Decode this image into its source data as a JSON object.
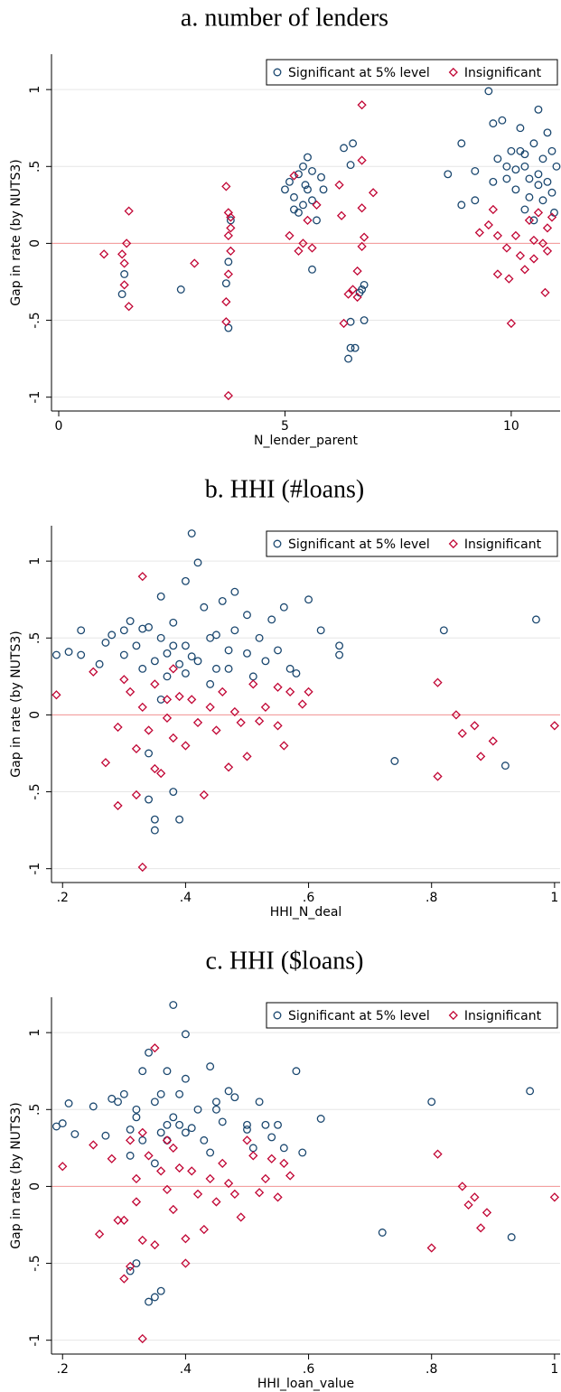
{
  "chart_data": [
    {
      "type": "scatter",
      "title": "a. number of lenders",
      "xlabel": "N_lender_parent",
      "ylabel": "Gap in rate (by NUTS3)",
      "xlim": [
        -0.16,
        11.08
      ],
      "ylim": [
        -1.09,
        1.23
      ],
      "xticks": [
        0,
        5,
        10
      ],
      "yticks": [
        -1,
        {
          "value": -0.5,
          "label": "-.5"
        },
        0,
        {
          "value": 0.5,
          "label": ".5"
        },
        1
      ],
      "grid": true,
      "reference_line": 0,
      "reference_color": "#f4a0a0",
      "legend": "top-right",
      "series": [
        {
          "name": "Significant at 5% level",
          "color": "#1a476f",
          "marker": "circle",
          "x": [
            1.4,
            1.45,
            2.7,
            3.75,
            3.7,
            3.8,
            3.75,
            5,
            5.1,
            5.2,
            5.3,
            5.4,
            5.5,
            5.6,
            5.5,
            5.4,
            5.3,
            5.6,
            5.7,
            5.8,
            5.85,
            5.2,
            5.6,
            5.45,
            6.3,
            6.5,
            6.45,
            6.4,
            6.45,
            6.55,
            6.45,
            6.75,
            6.75,
            6.7,
            6.65,
            8.6,
            8.9,
            8.9,
            9.2,
            9.2,
            9.5,
            9.6,
            9.7,
            9.8,
            9.9,
            10,
            10.1,
            10.2,
            10.3,
            10.4,
            10.5,
            10.6,
            10.7,
            10.8,
            10.9,
            11,
            10.3,
            10.5,
            10.7,
            10.9,
            10.6,
            10.2,
            10.8,
            9.9,
            10.4,
            10.1,
            10.6,
            10.3,
            10.95,
            9.6
          ],
          "y": [
            -0.33,
            -0.2,
            -0.3,
            -0.55,
            -0.26,
            0.15,
            -0.12,
            0.35,
            0.4,
            0.3,
            0.45,
            0.5,
            0.56,
            0.47,
            0.35,
            0.25,
            0.2,
            -0.17,
            0.15,
            0.43,
            0.35,
            0.22,
            0.28,
            0.38,
            0.62,
            0.65,
            0.51,
            -0.75,
            -0.68,
            -0.68,
            -0.51,
            -0.5,
            -0.27,
            -0.3,
            -0.32,
            0.45,
            0.25,
            0.65,
            0.47,
            0.28,
            0.99,
            0.78,
            0.55,
            0.8,
            0.42,
            0.6,
            0.35,
            0.75,
            0.5,
            0.3,
            0.65,
            0.45,
            0.55,
            0.4,
            0.33,
            0.5,
            0.22,
            0.15,
            0.28,
            0.6,
            0.87,
            0.6,
            0.72,
            0.5,
            0.42,
            0.48,
            0.38,
            0.58,
            0.2,
            0.4
          ]
        },
        {
          "name": "Insignificant",
          "color": "#c10534",
          "marker": "diamond",
          "x": [
            1,
            1.4,
            1.45,
            1.45,
            1.5,
            1.55,
            1.55,
            3,
            3.7,
            3.7,
            3.75,
            3.75,
            3.8,
            3.8,
            3.75,
            3.7,
            3.8,
            3.75,
            5.2,
            5.1,
            5.3,
            5.5,
            5.7,
            5.6,
            5.4,
            6.2,
            6.25,
            6.3,
            6.4,
            6.5,
            6.6,
            6.7,
            6.7,
            6.7,
            6.75,
            6.7,
            6.6,
            6.95,
            9.3,
            9.5,
            9.7,
            9.9,
            9.95,
            10,
            10.1,
            10.2,
            10.4,
            10.5,
            10.6,
            10.7,
            10.75,
            10.8,
            10.9,
            9.6,
            10.3,
            9.7,
            10.8,
            10.5
          ],
          "y": [
            -0.07,
            -0.07,
            -0.13,
            -0.27,
            0,
            0.21,
            -0.41,
            -0.13,
            0.37,
            -0.51,
            -0.99,
            0.2,
            0.1,
            -0.05,
            -0.2,
            -0.38,
            0.17,
            0.05,
            0.44,
            0.05,
            -0.05,
            0.15,
            0.25,
            -0.03,
            0,
            0.38,
            0.18,
            -0.52,
            -0.33,
            -0.3,
            -0.18,
            0.9,
            0.54,
            0.23,
            0.04,
            -0.02,
            -0.35,
            0.33,
            0.07,
            0.12,
            0.05,
            -0.03,
            -0.23,
            -0.52,
            0.05,
            -0.08,
            0.15,
            -0.1,
            0.2,
            0,
            -0.32,
            -0.05,
            0.17,
            0.22,
            -0.17,
            -0.2,
            0.1,
            0.02
          ]
        }
      ]
    },
    {
      "type": "scatter",
      "title": "b. HHI (#loans)",
      "xlabel": "HHI_N_deal",
      "ylabel": "Gap in rate (by NUTS3)",
      "xlim": [
        0.182,
        1.009
      ],
      "ylim": [
        -1.09,
        1.23
      ],
      "xticks": [
        {
          "value": 0.2,
          "label": ".2"
        },
        {
          "value": 0.4,
          "label": ".4"
        },
        {
          "value": 0.6,
          "label": ".6"
        },
        {
          "value": 0.8,
          "label": ".8"
        },
        1
      ],
      "yticks": [
        -1,
        {
          "value": -0.5,
          "label": "-.5"
        },
        0,
        {
          "value": 0.5,
          "label": ".5"
        },
        1
      ],
      "grid": true,
      "reference_line": 0,
      "reference_color": "#f4a0a0",
      "legend": "top-right",
      "series": [
        {
          "name": "Significant at 5% level",
          "color": "#1a476f",
          "marker": "circle",
          "x": [
            0.19,
            0.21,
            0.23,
            0.23,
            0.26,
            0.27,
            0.28,
            0.3,
            0.31,
            0.3,
            0.32,
            0.33,
            0.33,
            0.34,
            0.34,
            0.34,
            0.35,
            0.35,
            0.36,
            0.36,
            0.37,
            0.37,
            0.38,
            0.38,
            0.39,
            0.4,
            0.4,
            0.41,
            0.42,
            0.42,
            0.43,
            0.44,
            0.45,
            0.46,
            0.47,
            0.48,
            0.48,
            0.5,
            0.5,
            0.51,
            0.52,
            0.53,
            0.54,
            0.55,
            0.56,
            0.57,
            0.58,
            0.6,
            0.62,
            0.65,
            0.65,
            0.74,
            0.82,
            0.92,
            0.97,
            0.39,
            0.41,
            0.45,
            0.44,
            0.36,
            0.38,
            0.4,
            0.47,
            0.35
          ],
          "y": [
            0.39,
            0.41,
            0.55,
            0.39,
            0.33,
            0.47,
            0.52,
            0.55,
            0.61,
            0.39,
            0.45,
            0.56,
            0.3,
            0.57,
            -0.25,
            -0.55,
            -0.68,
            -0.75,
            0.77,
            0.5,
            0.4,
            0.25,
            0.6,
            -0.5,
            -0.68,
            0.87,
            0.45,
            1.18,
            0.99,
            0.35,
            0.7,
            0.5,
            0.3,
            0.74,
            0.42,
            0.55,
            0.8,
            0.65,
            0.4,
            0.25,
            0.5,
            0.35,
            0.62,
            0.42,
            0.7,
            0.3,
            0.27,
            0.75,
            0.55,
            0.45,
            0.39,
            -0.3,
            0.55,
            -0.33,
            0.62,
            0.33,
            0.38,
            0.52,
            0.2,
            0.1,
            0.45,
            0.27,
            0.3,
            0.35
          ]
        },
        {
          "name": "Insignificant",
          "color": "#c10534",
          "marker": "diamond",
          "x": [
            0.19,
            0.25,
            0.27,
            0.29,
            0.29,
            0.3,
            0.31,
            0.32,
            0.32,
            0.33,
            0.33,
            0.33,
            0.34,
            0.35,
            0.35,
            0.36,
            0.37,
            0.37,
            0.38,
            0.38,
            0.4,
            0.41,
            0.42,
            0.43,
            0.44,
            0.45,
            0.46,
            0.47,
            0.48,
            0.49,
            0.5,
            0.51,
            0.53,
            0.55,
            0.56,
            0.57,
            0.59,
            0.6,
            0.81,
            0.81,
            0.84,
            0.85,
            0.87,
            0.88,
            0.9,
            1,
            0.55,
            0.52,
            0.39
          ],
          "y": [
            0.13,
            0.28,
            -0.31,
            -0.08,
            -0.59,
            0.23,
            0.15,
            -0.22,
            -0.52,
            0.9,
            -0.99,
            0.05,
            -0.1,
            -0.35,
            0.2,
            -0.38,
            0.1,
            -0.02,
            0.3,
            -0.15,
            -0.2,
            0.1,
            -0.05,
            -0.52,
            0.05,
            -0.1,
            0.15,
            -0.34,
            0.02,
            -0.05,
            -0.27,
            0.2,
            0.05,
            -0.07,
            -0.2,
            0.15,
            0.07,
            0.15,
            0.21,
            -0.4,
            0,
            -0.12,
            -0.07,
            -0.27,
            -0.17,
            -0.07,
            0.18,
            -0.04,
            0.12
          ]
        }
      ]
    },
    {
      "type": "scatter",
      "title": "c. HHI ($loans)",
      "xlabel": "HHI_loan_value",
      "ylabel": "Gap in rate (by NUTS3)",
      "xlim": [
        0.182,
        1.009
      ],
      "ylim": [
        -1.09,
        1.23
      ],
      "xticks": [
        {
          "value": 0.2,
          "label": ".2"
        },
        {
          "value": 0.4,
          "label": ".4"
        },
        {
          "value": 0.6,
          "label": ".6"
        },
        {
          "value": 0.8,
          "label": ".8"
        },
        1
      ],
      "yticks": [
        -1,
        {
          "value": -0.5,
          "label": "-.5"
        },
        0,
        {
          "value": 0.5,
          "label": ".5"
        },
        1
      ],
      "grid": true,
      "reference_line": 0,
      "reference_color": "#f4a0a0",
      "legend": "top-right",
      "series": [
        {
          "name": "Significant at 5% level",
          "color": "#1a476f",
          "marker": "circle",
          "x": [
            0.19,
            0.2,
            0.21,
            0.22,
            0.25,
            0.27,
            0.28,
            0.29,
            0.3,
            0.31,
            0.31,
            0.32,
            0.32,
            0.33,
            0.33,
            0.34,
            0.35,
            0.35,
            0.36,
            0.36,
            0.37,
            0.37,
            0.38,
            0.38,
            0.39,
            0.4,
            0.4,
            0.39,
            0.4,
            0.42,
            0.43,
            0.44,
            0.45,
            0.46,
            0.47,
            0.48,
            0.5,
            0.5,
            0.51,
            0.52,
            0.53,
            0.54,
            0.55,
            0.56,
            0.58,
            0.59,
            0.62,
            0.72,
            0.8,
            0.93,
            0.96,
            0.37,
            0.41,
            0.45,
            0.44,
            0.35,
            0.36,
            0.31,
            0.32,
            0.34
          ],
          "y": [
            0.39,
            0.41,
            0.54,
            0.34,
            0.52,
            0.33,
            0.57,
            0.55,
            0.6,
            0.37,
            0.2,
            0.45,
            0.5,
            0.75,
            0.3,
            0.87,
            0.55,
            -0.72,
            0.6,
            0.35,
            0.75,
            0.4,
            1.18,
            0.45,
            0.4,
            0.99,
            0.35,
            0.6,
            0.7,
            0.5,
            0.3,
            0.78,
            0.55,
            0.42,
            0.62,
            0.58,
            0.37,
            0.4,
            0.25,
            0.55,
            0.4,
            0.32,
            0.4,
            0.25,
            0.75,
            0.22,
            0.44,
            -0.3,
            0.55,
            -0.33,
            0.62,
            0.3,
            0.38,
            0.5,
            0.22,
            0.15,
            -0.68,
            -0.55,
            -0.5,
            -0.75
          ]
        },
        {
          "name": "Insignificant",
          "color": "#c10534",
          "marker": "diamond",
          "x": [
            0.2,
            0.25,
            0.26,
            0.28,
            0.29,
            0.3,
            0.31,
            0.31,
            0.32,
            0.32,
            0.33,
            0.33,
            0.33,
            0.34,
            0.35,
            0.35,
            0.36,
            0.37,
            0.37,
            0.38,
            0.38,
            0.4,
            0.41,
            0.42,
            0.43,
            0.44,
            0.45,
            0.46,
            0.47,
            0.48,
            0.49,
            0.5,
            0.51,
            0.53,
            0.55,
            0.56,
            0.57,
            0.3,
            0.81,
            0.8,
            0.85,
            0.86,
            0.87,
            0.88,
            0.89,
            1,
            0.54,
            0.52,
            0.39,
            0.4
          ],
          "y": [
            0.13,
            0.27,
            -0.31,
            0.18,
            -0.22,
            -0.6,
            0.3,
            -0.52,
            0.05,
            -0.1,
            -0.99,
            0.35,
            -0.35,
            0.2,
            -0.38,
            0.9,
            0.1,
            -0.02,
            0.3,
            -0.15,
            0.25,
            -0.5,
            0.1,
            -0.05,
            -0.28,
            0.05,
            -0.1,
            0.15,
            0.02,
            -0.05,
            -0.2,
            0.3,
            0.2,
            0.05,
            -0.07,
            0.15,
            0.07,
            -0.22,
            0.21,
            -0.4,
            0,
            -0.12,
            -0.07,
            -0.27,
            -0.17,
            -0.07,
            0.18,
            -0.04,
            0.12,
            -0.34
          ]
        }
      ]
    }
  ]
}
